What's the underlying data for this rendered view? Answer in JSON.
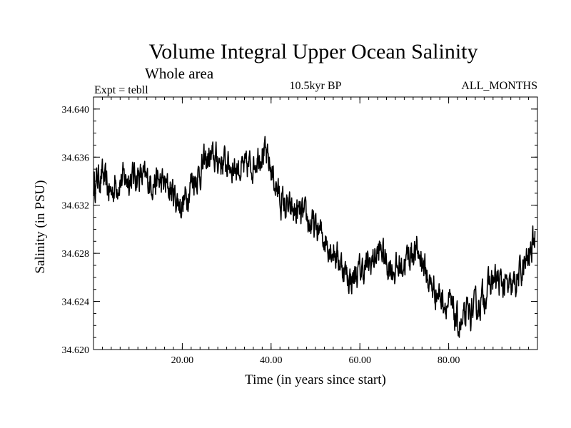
{
  "chart_data": {
    "type": "line",
    "title": "Volume Integral Upper Ocean Salinity",
    "subtitle": "Whole area",
    "annotation_left": "Expt = tebll",
    "annotation_center": "10.5kyr BP",
    "annotation_right": "ALL_MONTHS",
    "xlabel": "Time (in years since start)",
    "ylabel": "Salinity (in PSU)",
    "xlim": [
      0,
      100
    ],
    "ylim": [
      34.62,
      34.641
    ],
    "x_ticks": [
      20,
      40,
      60,
      80
    ],
    "x_tick_labels": [
      "20.00",
      "40.00",
      "60.00",
      "80.00"
    ],
    "y_ticks": [
      34.62,
      34.624,
      34.628,
      34.632,
      34.636,
      34.64
    ],
    "y_tick_labels": [
      "34.620",
      "34.624",
      "34.628",
      "34.632",
      "34.636",
      "34.640"
    ],
    "series": [
      {
        "name": "Salinity",
        "color": "#000000",
        "x": [
          0,
          1,
          2,
          3,
          4,
          5,
          6,
          8,
          10,
          12,
          14,
          16,
          18,
          19,
          20,
          21,
          22,
          24,
          25,
          26,
          28,
          30,
          32,
          34,
          36,
          37,
          38,
          39,
          40,
          42,
          44,
          46,
          48,
          50,
          52,
          54,
          56,
          57,
          58,
          60,
          62,
          64,
          65,
          66,
          68,
          70,
          72,
          74,
          75,
          76,
          78,
          80,
          81,
          82,
          83,
          84,
          86,
          88,
          90,
          92,
          94,
          96,
          98,
          99.5
        ],
        "values": [
          34.6336,
          34.6342,
          34.6345,
          34.6335,
          34.633,
          34.6338,
          34.634,
          34.6343,
          34.6345,
          34.634,
          34.634,
          34.6337,
          34.633,
          34.6323,
          34.632,
          34.6328,
          34.634,
          34.6347,
          34.6355,
          34.6358,
          34.6358,
          34.6355,
          34.6352,
          34.6349,
          34.6355,
          34.6362,
          34.6366,
          34.6358,
          34.635,
          34.6325,
          34.6315,
          34.6313,
          34.6308,
          34.63,
          34.6293,
          34.6283,
          34.627,
          34.6262,
          34.6258,
          34.6265,
          34.627,
          34.628,
          34.6282,
          34.6272,
          34.6266,
          34.6272,
          34.6283,
          34.6276,
          34.6262,
          34.6253,
          34.6245,
          34.6237,
          34.623,
          34.6222,
          34.6218,
          34.6228,
          34.6233,
          34.6245,
          34.6258,
          34.6255,
          34.6248,
          34.6262,
          34.6275,
          34.6295
        ]
      }
    ]
  }
}
